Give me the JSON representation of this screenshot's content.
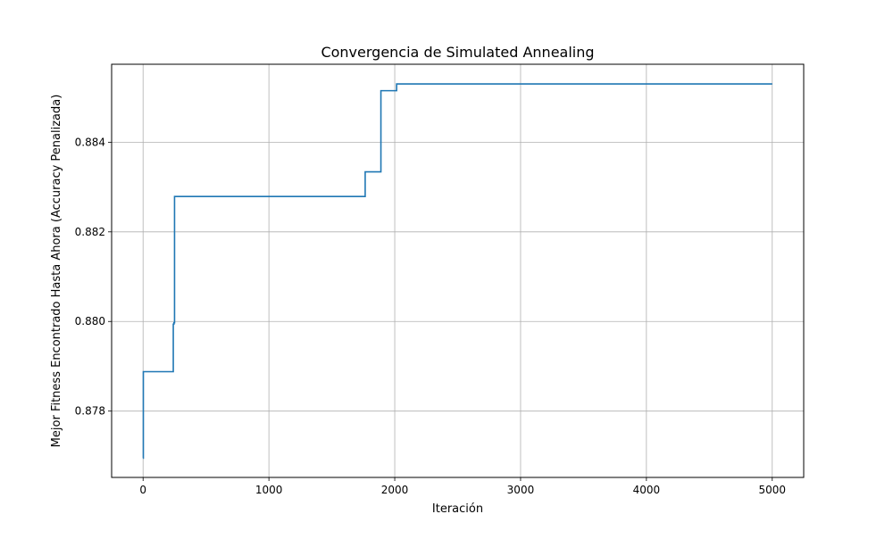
{
  "colors": {
    "series": "#1f77b4",
    "grid": "#b0b0b0",
    "axes": "#000000",
    "background": "#ffffff"
  },
  "chart_data": {
    "type": "line",
    "title": "Convergencia de Simulated Annealing",
    "xlabel": "Iteración",
    "ylabel": "Mejor Fitness Encontrado Hasta Ahora (Accuracy Penalizada)",
    "xlim": [
      -250,
      5250
    ],
    "ylim": [
      0.87652,
      0.88574
    ],
    "xticks": [
      0,
      1000,
      2000,
      3000,
      4000,
      5000
    ],
    "yticks": [
      0.878,
      0.88,
      0.882,
      0.884
    ],
    "xtick_labels": [
      "0",
      "1000",
      "2000",
      "3000",
      "4000",
      "5000"
    ],
    "ytick_labels": [
      "0.878",
      "0.880",
      "0.882",
      "0.884"
    ],
    "grid": true,
    "legend": false,
    "series": [
      {
        "step": "post",
        "x": [
          0,
          2,
          240,
          245,
          250,
          1765,
          1890,
          2015,
          5000
        ],
        "y": [
          0.87695,
          0.87888,
          0.87994,
          0.87997,
          0.88279,
          0.88334,
          0.88515,
          0.8853,
          0.8853
        ]
      }
    ]
  }
}
